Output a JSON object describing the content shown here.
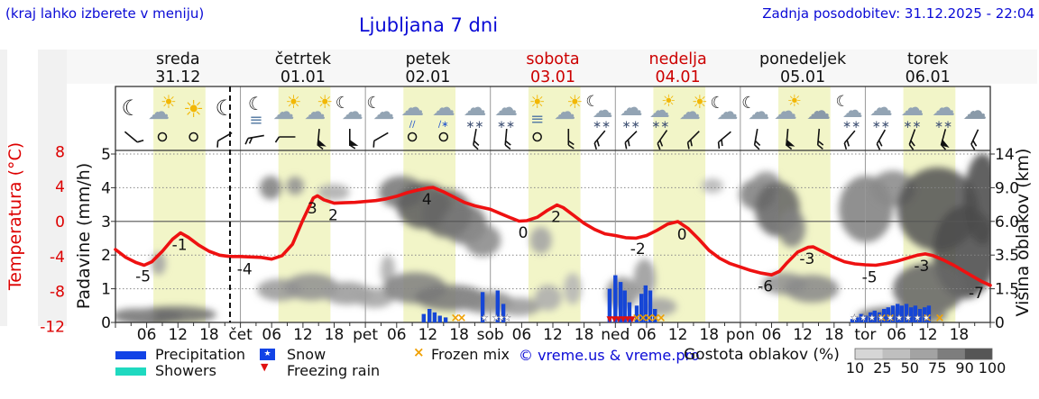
{
  "header": {
    "hint": "(kraj lahko izberete v meniju)",
    "title": "Ljubljana 7 dni",
    "updated": "Zadnja posodobitev: 31.12.2025 - 22:04"
  },
  "axes": {
    "temp_title": "Temperatura (°C)",
    "temp_color": "#dd0000",
    "temp_ticks": [
      8,
      4,
      0,
      -4,
      -8,
      -12
    ],
    "precip_title": "Padavine (mm/h)",
    "precip_ticks": [
      5,
      4,
      3,
      2,
      1,
      0
    ],
    "cloud_title": "Višina oblakov (km)",
    "cloud_ticks": [
      "14",
      "9.0",
      "6.0",
      "3.5",
      "1.5",
      "0"
    ],
    "hour_labels": [
      "06",
      "12",
      "18"
    ],
    "day_abbrevs": [
      "čet",
      "pet",
      "sob",
      "ned",
      "pon",
      "tor"
    ]
  },
  "legend": {
    "precipitation": "Precipitation",
    "showers": "Showers",
    "snow": "Snow",
    "freezing_rain": "Freezing rain",
    "frozen_mix": "Frozen mix",
    "copyright": "© vreme.us & vreme.pro",
    "precip_color": "#1243e6",
    "showers_color": "#1fd9c0",
    "frozen_color": "#f0a000",
    "freezing_color": "#e01010"
  },
  "cloud_scale": {
    "label": "Gostota oblakov (%)",
    "ticks": [
      10,
      25,
      50,
      75,
      90,
      100
    ],
    "segment_colors": [
      "#d6d6d6",
      "#bfbfbf",
      "#a3a3a3",
      "#7d7d7d",
      "#565656"
    ]
  },
  "chart_data": {
    "type": "line",
    "title": "Ljubljana 7 dni",
    "x_unit": "hours from 31.12 00:00",
    "x_range": [
      0,
      168
    ],
    "temp_axis_range_c": [
      -13,
      9
    ],
    "precip_axis_range_mm": [
      0,
      5.1
    ],
    "cloud_axis_km_ticks": [
      0,
      1.5,
      3.5,
      6.0,
      9.0,
      14
    ],
    "now_hour": 22,
    "daylight_band_hours": [
      7.3,
      17.3
    ],
    "band_color": "#f2f5c8",
    "curve_color": "#ee1111",
    "days": [
      {
        "name": "sreda",
        "date": "31.12",
        "color": "#111111"
      },
      {
        "name": "četrtek",
        "date": "01.01",
        "color": "#111111"
      },
      {
        "name": "petek",
        "date": "02.01",
        "color": "#111111"
      },
      {
        "name": "sobota",
        "date": "03.01",
        "color": "#cc0000"
      },
      {
        "name": "nedelja",
        "date": "04.01",
        "color": "#cc0000"
      },
      {
        "name": "ponedeljek",
        "date": "05.01",
        "color": "#111111"
      },
      {
        "name": "torek",
        "date": "06.01",
        "color": "#111111"
      }
    ],
    "temperature_series": [
      [
        0,
        -3.2
      ],
      [
        2,
        -4.1
      ],
      [
        4,
        -4.7
      ],
      [
        5.5,
        -5.0
      ],
      [
        7,
        -4.6
      ],
      [
        9,
        -3.4
      ],
      [
        11,
        -2.0
      ],
      [
        12.5,
        -1.3
      ],
      [
        14,
        -1.8
      ],
      [
        16,
        -2.7
      ],
      [
        18,
        -3.4
      ],
      [
        20,
        -3.85
      ],
      [
        22,
        -4.0
      ],
      [
        24,
        -4.0
      ],
      [
        26,
        -4.05
      ],
      [
        28,
        -4.1
      ],
      [
        30,
        -4.3
      ],
      [
        32,
        -3.9
      ],
      [
        34,
        -2.6
      ],
      [
        36,
        0.2
      ],
      [
        38,
        2.7
      ],
      [
        38.8,
        2.95
      ],
      [
        40,
        2.5
      ],
      [
        42,
        2.1
      ],
      [
        44,
        2.15
      ],
      [
        46,
        2.2
      ],
      [
        48,
        2.3
      ],
      [
        50,
        2.4
      ],
      [
        52,
        2.6
      ],
      [
        54,
        2.9
      ],
      [
        56,
        3.3
      ],
      [
        58,
        3.6
      ],
      [
        60,
        3.85
      ],
      [
        61,
        3.9
      ],
      [
        63,
        3.4
      ],
      [
        65,
        2.8
      ],
      [
        67,
        2.2
      ],
      [
        69,
        1.8
      ],
      [
        72,
        1.4
      ],
      [
        74,
        0.9
      ],
      [
        76,
        0.4
      ],
      [
        77.5,
        0.05
      ],
      [
        79,
        0.1
      ],
      [
        81,
        0.5
      ],
      [
        83,
        1.3
      ],
      [
        84.8,
        1.9
      ],
      [
        86,
        1.6
      ],
      [
        88,
        0.7
      ],
      [
        90,
        -0.2
      ],
      [
        92,
        -0.9
      ],
      [
        94,
        -1.4
      ],
      [
        96,
        -1.6
      ],
      [
        98,
        -1.85
      ],
      [
        100,
        -1.9
      ],
      [
        102,
        -1.6
      ],
      [
        104,
        -1.0
      ],
      [
        106,
        -0.3
      ],
      [
        108,
        0.0
      ],
      [
        110,
        -0.8
      ],
      [
        112,
        -2.0
      ],
      [
        114,
        -3.3
      ],
      [
        116,
        -4.2
      ],
      [
        118,
        -4.8
      ],
      [
        120,
        -5.2
      ],
      [
        122,
        -5.6
      ],
      [
        124,
        -5.9
      ],
      [
        126,
        -6.1
      ],
      [
        127.5,
        -5.7
      ],
      [
        129,
        -4.7
      ],
      [
        131,
        -3.5
      ],
      [
        133,
        -2.95
      ],
      [
        134,
        -2.9
      ],
      [
        136,
        -3.5
      ],
      [
        138,
        -4.1
      ],
      [
        140,
        -4.6
      ],
      [
        142,
        -4.85
      ],
      [
        144,
        -4.95
      ],
      [
        146,
        -5.0
      ],
      [
        148,
        -4.8
      ],
      [
        150,
        -4.55
      ],
      [
        152,
        -4.2
      ],
      [
        154,
        -3.85
      ],
      [
        155.5,
        -3.7
      ],
      [
        157,
        -3.9
      ],
      [
        159,
        -4.4
      ],
      [
        161,
        -5.0
      ],
      [
        163,
        -5.7
      ],
      [
        165,
        -6.4
      ],
      [
        166.5,
        -6.9
      ],
      [
        168,
        -7.3
      ]
    ],
    "temperature_labels": [
      {
        "t": 6,
        "temp": -4.9,
        "text": "-5"
      },
      {
        "t": 13,
        "temp": -1.3,
        "text": "-1"
      },
      {
        "t": 25.5,
        "temp": -4.05,
        "text": "-4"
      },
      {
        "t": 38.5,
        "temp": 2.9,
        "text": "3"
      },
      {
        "t": 42.5,
        "temp": 2.1,
        "text": "2"
      },
      {
        "t": 60.5,
        "temp": 3.9,
        "text": "4"
      },
      {
        "t": 79,
        "temp": 0.1,
        "text": "0"
      },
      {
        "t": 85.3,
        "temp": 1.9,
        "text": "2"
      },
      {
        "t": 101,
        "temp": -1.75,
        "text": "-2"
      },
      {
        "t": 109.5,
        "temp": -0.1,
        "text": "0"
      },
      {
        "t": 125.5,
        "temp": -6.05,
        "text": "-6"
      },
      {
        "t": 133.5,
        "temp": -2.9,
        "text": "-3"
      },
      {
        "t": 145.5,
        "temp": -5.0,
        "text": "-5"
      },
      {
        "t": 155.5,
        "temp": -3.7,
        "text": "-3"
      },
      {
        "t": 166,
        "temp": -6.8,
        "text": "-7"
      }
    ],
    "precip_bars_mm": [
      [
        59.2,
        0.25
      ],
      [
        60.3,
        0.4
      ],
      [
        61.3,
        0.3
      ],
      [
        62.3,
        0.2
      ],
      [
        63.4,
        0.15
      ],
      [
        70.5,
        0.9
      ],
      [
        73.4,
        0.95
      ],
      [
        74.5,
        0.55
      ],
      [
        94.9,
        1.0
      ],
      [
        96.0,
        1.4
      ],
      [
        97.0,
        1.2
      ],
      [
        97.8,
        0.95
      ],
      [
        98.7,
        0.6
      ],
      [
        100.1,
        0.5
      ],
      [
        101.0,
        0.85
      ],
      [
        101.8,
        1.1
      ],
      [
        102.7,
        0.95
      ],
      [
        103.6,
        0.4
      ],
      [
        141.5,
        0.1
      ],
      [
        142.4,
        0.15
      ],
      [
        143.2,
        0.25
      ],
      [
        144.1,
        0.2
      ],
      [
        145.0,
        0.3
      ],
      [
        145.8,
        0.35
      ],
      [
        146.7,
        0.3
      ],
      [
        147.6,
        0.4
      ],
      [
        148.4,
        0.45
      ],
      [
        149.3,
        0.5
      ],
      [
        150.2,
        0.55
      ],
      [
        151.0,
        0.5
      ],
      [
        151.9,
        0.55
      ],
      [
        152.8,
        0.45
      ],
      [
        153.6,
        0.5
      ],
      [
        154.5,
        0.4
      ],
      [
        155.4,
        0.45
      ],
      [
        156.2,
        0.5
      ]
    ],
    "snow_marker_hours": [
      70.8,
      73.1,
      74.1,
      75.2,
      141.9,
      143.6,
      145.3,
      147.0,
      148.8,
      150.5,
      152.2,
      154.0,
      155.7
    ],
    "frozen_mix_hours": [
      65.3,
      66.5,
      100.1,
      101.3,
      102.5,
      103.7,
      104.8,
      147.2,
      148.8,
      155.9,
      158.3
    ],
    "freezing_rain_hours": [
      94.9,
      95.8,
      96.6,
      97.5,
      98.4,
      99.2
    ],
    "cloud_blobs": [
      [
        6.4,
        0.25,
        6.5,
        0.5,
        80
      ],
      [
        11.6,
        0.35,
        7.8,
        0.4,
        65
      ],
      [
        3.5,
        0.3,
        4.3,
        0.35,
        50
      ],
      [
        8.3,
        3.0,
        1.4,
        0.7,
        35
      ],
      [
        29.8,
        9.0,
        2.1,
        1.3,
        55
      ],
      [
        34.5,
        9.3,
        1.7,
        1.1,
        45
      ],
      [
        41.9,
        8.6,
        3.1,
        0.8,
        30
      ],
      [
        31.5,
        1.45,
        4.3,
        0.55,
        40
      ],
      [
        37.6,
        1.6,
        5.2,
        0.7,
        45
      ],
      [
        44.5,
        1.3,
        4.8,
        0.55,
        40
      ],
      [
        49.7,
        1.1,
        3.8,
        0.45,
        35
      ],
      [
        52.3,
        2.6,
        1.4,
        0.9,
        30
      ],
      [
        54.9,
        8.6,
        4.3,
        1.7,
        60
      ],
      [
        59.2,
        7.4,
        5.2,
        2.1,
        75
      ],
      [
        63.6,
        6.7,
        4.8,
        2.0,
        70
      ],
      [
        67.0,
        5.8,
        4.3,
        1.6,
        60
      ],
      [
        70.5,
        4.6,
        3.5,
        1.2,
        50
      ],
      [
        57.5,
        1.55,
        6.1,
        0.8,
        55
      ],
      [
        64.4,
        1.1,
        6.9,
        0.6,
        60
      ],
      [
        71.3,
        0.9,
        5.2,
        0.5,
        50
      ],
      [
        77.4,
        0.7,
        4.3,
        0.4,
        40
      ],
      [
        81.7,
        4.6,
        2.1,
        1.0,
        35
      ],
      [
        83.1,
        1.1,
        2.6,
        0.6,
        30
      ],
      [
        87.8,
        1.5,
        1.7,
        0.8,
        25
      ],
      [
        97.3,
        1.3,
        3.1,
        0.8,
        45
      ],
      [
        101.6,
        2.1,
        2.1,
        1.1,
        40
      ],
      [
        104.3,
        0.7,
        3.5,
        0.4,
        35
      ],
      [
        114.6,
        9.3,
        2.1,
        0.9,
        25
      ],
      [
        123.3,
        8.4,
        3.5,
        1.6,
        55
      ],
      [
        125.0,
        9.8,
        2.6,
        1.4,
        45
      ],
      [
        127.1,
        7.1,
        4.3,
        2.4,
        70
      ],
      [
        129.9,
        5.5,
        2.6,
        1.5,
        55
      ],
      [
        128.5,
        1.8,
        4.3,
        0.6,
        45
      ],
      [
        133.7,
        1.5,
        5.2,
        0.7,
        50
      ],
      [
        144.1,
        7.1,
        5.2,
        3.0,
        55
      ],
      [
        149.3,
        8.9,
        4.3,
        2.0,
        50
      ],
      [
        157.9,
        7.1,
        7.8,
        3.8,
        80
      ],
      [
        163.1,
        3.7,
        6.1,
        3.0,
        85
      ],
      [
        156.2,
        1.5,
        6.9,
        1.3,
        70
      ],
      [
        151.0,
        0.3,
        8.7,
        0.55,
        60
      ],
      [
        166.5,
        8.0,
        3.5,
        4.5,
        85
      ]
    ],
    "weather_icons": [
      "moon",
      "sun-cloud",
      "sun",
      "moon",
      "moon-fog",
      "sun-cloud",
      "sun-cloud",
      "moon-cloud",
      "moon-cloud",
      "rain-cloud",
      "rain-snow-cloud",
      "snow-cloud",
      "snow-cloud",
      "fog-sun",
      "sun-cloud",
      "moon-cloud-snow",
      "snow-cloud",
      "sun-cloud-snow",
      "sun-cloud",
      "moon-cloud",
      "moon-cloud",
      "cloud-sun",
      "cloud",
      "moon-cloud-snow",
      "snow-cloud",
      "snow-cloud",
      "snow-cloud",
      "cloud"
    ],
    "wind_barbs": [
      {
        "dir": 40,
        "s": 1
      },
      {
        "dir": 0,
        "s": 0
      },
      {
        "dir": 0,
        "s": 0
      },
      {
        "dir": 150,
        "s": 1
      },
      {
        "dir": 170,
        "s": 2
      },
      {
        "dir": 180,
        "s": 1
      },
      {
        "dir": 95,
        "s": 3
      },
      {
        "dir": 90,
        "s": 3
      },
      {
        "dir": 150,
        "s": 1
      },
      {
        "dir": 0,
        "s": 0
      },
      {
        "dir": 0,
        "s": 0
      },
      {
        "dir": 100,
        "s": 2
      },
      {
        "dir": 95,
        "s": 2
      },
      {
        "dir": 0,
        "s": 0
      },
      {
        "dir": 90,
        "s": 2
      },
      {
        "dir": 130,
        "s": 2
      },
      {
        "dir": 135,
        "s": 2
      },
      {
        "dir": 125,
        "s": 2
      },
      {
        "dir": 135,
        "s": 2
      },
      {
        "dir": 140,
        "s": 2
      },
      {
        "dir": 100,
        "s": 2
      },
      {
        "dir": 95,
        "s": 3
      },
      {
        "dir": 95,
        "s": 2
      },
      {
        "dir": 130,
        "s": 2
      },
      {
        "dir": 120,
        "s": 2
      },
      {
        "dir": 110,
        "s": 2
      },
      {
        "dir": 105,
        "s": 3
      },
      {
        "dir": 115,
        "s": 2
      }
    ]
  }
}
